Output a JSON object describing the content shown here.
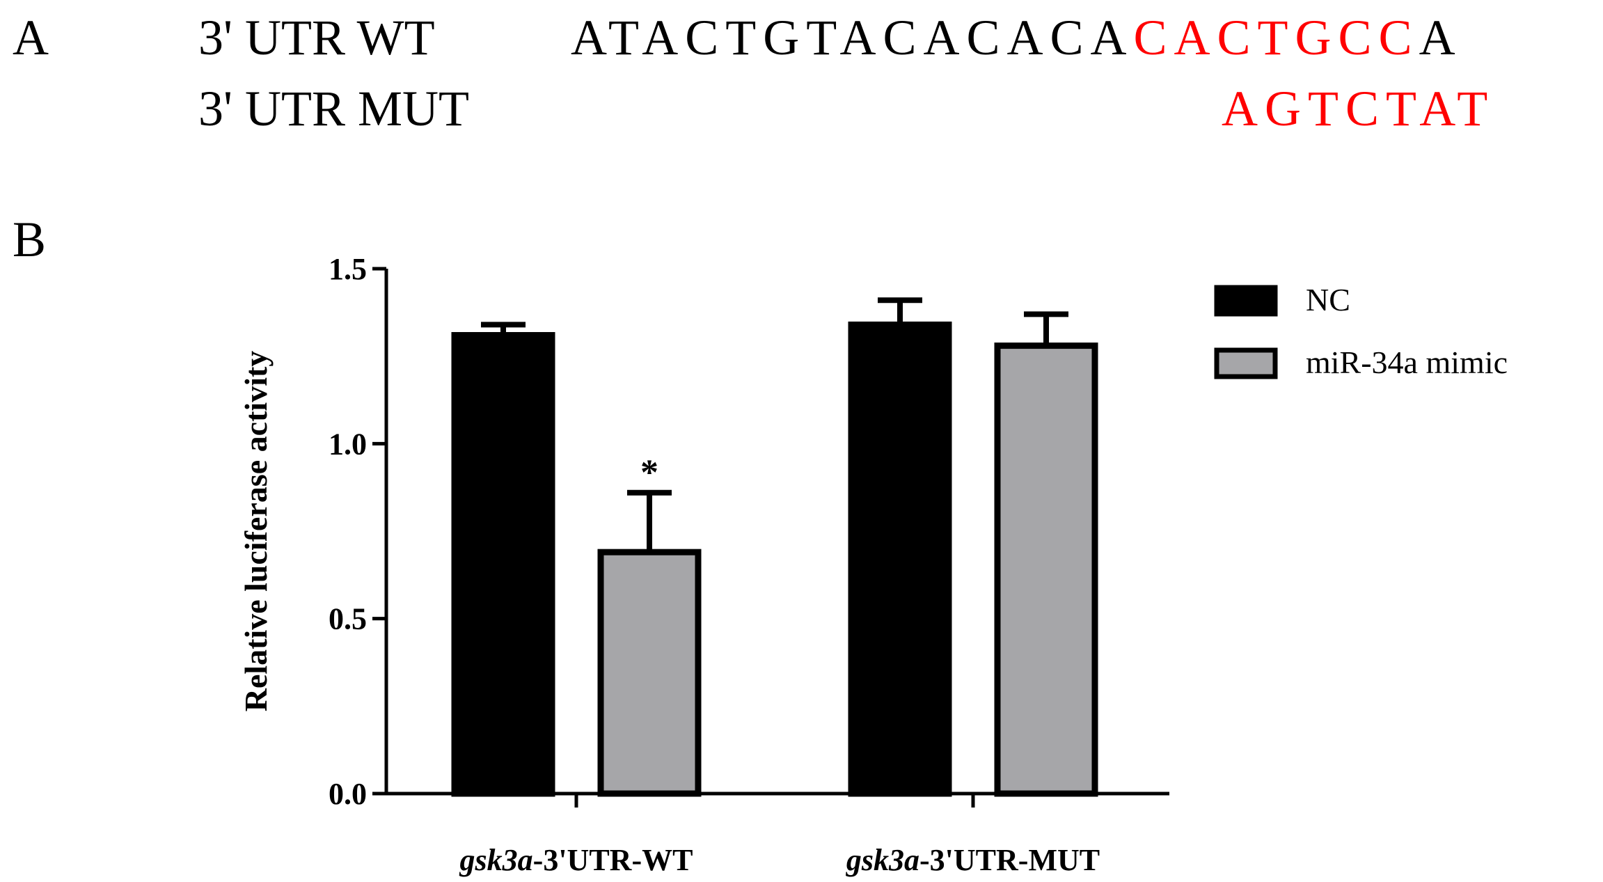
{
  "panel_a": {
    "label": "A",
    "rows": [
      {
        "label": "3' UTR WT",
        "prefix": "ATACTGTACACACA",
        "highlight": "CACTGCC",
        "suffix": "A"
      },
      {
        "label": "3' UTR MUT",
        "prefix": "",
        "highlight": "AGTCTAT",
        "suffix": ""
      }
    ],
    "highlight_color": "#ff0000"
  },
  "panel_b": {
    "label": "B"
  },
  "chart_data": {
    "type": "bar",
    "title": "",
    "ylabel": "Relative luciferase activity",
    "xlabel": "",
    "ylim": [
      0,
      1.5
    ],
    "yticks": [
      0.0,
      0.5,
      1.0,
      1.5
    ],
    "ytick_labels": [
      "0.0",
      "0.5",
      "1.0",
      "1.5"
    ],
    "categories": [
      {
        "italic": "gsk3a",
        "rest": "-3'UTR-WT"
      },
      {
        "italic": "gsk3a",
        "rest": "-3'UTR-MUT"
      }
    ],
    "series": [
      {
        "name": "NC",
        "color": "#000000",
        "values": [
          1.31,
          1.34
        ],
        "errors": [
          0.03,
          0.07
        ]
      },
      {
        "name": "miR-34a mimic",
        "color": "#a6a6a9",
        "values": [
          0.69,
          1.28
        ],
        "errors": [
          0.17,
          0.09
        ]
      }
    ],
    "annotations": [
      {
        "category": 0,
        "series": 1,
        "text": "*"
      }
    ],
    "grid": false,
    "legend_position": "top-right"
  }
}
